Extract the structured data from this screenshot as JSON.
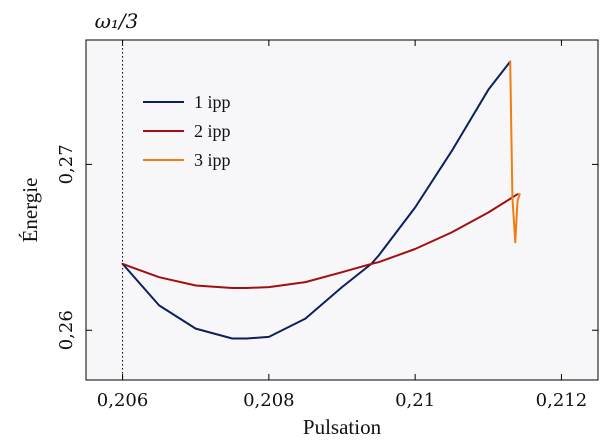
{
  "chart_data": {
    "type": "line",
    "xlabel": "Pulsation",
    "ylabel": "Énergie",
    "xlim": [
      0.2055,
      0.2125
    ],
    "ylim": [
      0.257,
      0.2775
    ],
    "xticks": [
      0.206,
      0.208,
      0.21,
      0.212
    ],
    "xtick_labels": [
      "0,206",
      "0,208",
      "0,21",
      "0,212"
    ],
    "yticks": [
      0.26,
      0.27
    ],
    "ytick_labels": [
      "0,26",
      "0,27"
    ],
    "grid": false,
    "background": "#f7f7fa",
    "legend": {
      "placement": "top-left"
    },
    "vline": {
      "x": 0.206,
      "label": "ω₁/3",
      "style": "dotted"
    },
    "series": [
      {
        "name": "1 ipp",
        "color": "#0d1f5c",
        "x": [
          0.206,
          0.2065,
          0.207,
          0.2075,
          0.2077,
          0.208,
          0.2085,
          0.209,
          0.2094,
          0.2095,
          0.21,
          0.2105,
          0.211,
          0.2113
        ],
        "y": [
          0.264,
          0.2615,
          0.2601,
          0.2595,
          0.2595,
          0.2596,
          0.2607,
          0.2626,
          0.264,
          0.2645,
          0.2674,
          0.2708,
          0.2745,
          0.2762
        ]
      },
      {
        "name": "2 ipp",
        "color": "#a01010",
        "x": [
          0.206,
          0.2065,
          0.207,
          0.2075,
          0.2077,
          0.208,
          0.2085,
          0.209,
          0.2094,
          0.2095,
          0.21,
          0.2105,
          0.211,
          0.2114
        ],
        "y": [
          0.264,
          0.2632,
          0.2627,
          0.26255,
          0.26255,
          0.2626,
          0.2629,
          0.2635,
          0.264,
          0.2641,
          0.2649,
          0.2659,
          0.2671,
          0.2682
        ]
      },
      {
        "name": "3 ipp",
        "color": "#f07d10",
        "x": [
          0.2113,
          0.21133,
          0.21137,
          0.2114,
          0.21143
        ],
        "y": [
          0.2762,
          0.268,
          0.2653,
          0.2678,
          0.2682
        ]
      }
    ]
  }
}
